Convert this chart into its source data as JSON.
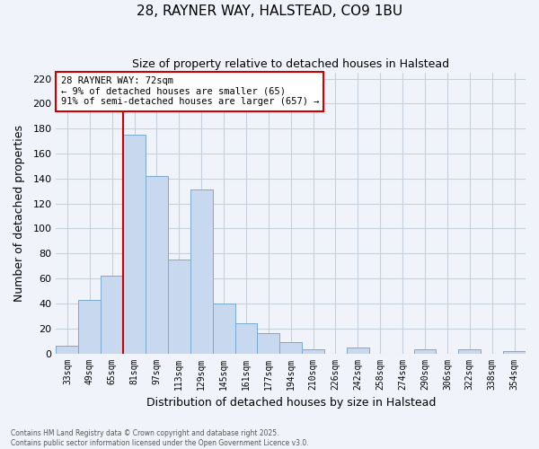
{
  "title": "28, RAYNER WAY, HALSTEAD, CO9 1BU",
  "subtitle": "Size of property relative to detached houses in Halstead",
  "xlabel": "Distribution of detached houses by size in Halstead",
  "ylabel": "Number of detached properties",
  "bar_labels": [
    "33sqm",
    "49sqm",
    "65sqm",
    "81sqm",
    "97sqm",
    "113sqm",
    "129sqm",
    "145sqm",
    "161sqm",
    "177sqm",
    "194sqm",
    "210sqm",
    "226sqm",
    "242sqm",
    "258sqm",
    "274sqm",
    "290sqm",
    "306sqm",
    "322sqm",
    "338sqm",
    "354sqm"
  ],
  "bar_values": [
    6,
    43,
    62,
    175,
    142,
    75,
    131,
    40,
    24,
    16,
    9,
    3,
    0,
    5,
    0,
    0,
    3,
    0,
    3,
    0,
    2
  ],
  "bar_color": "#c8d8ee",
  "bar_edge_color": "#7aaacf",
  "vline_x_idx": 3,
  "vline_color": "#cc0000",
  "annotation_title": "28 RAYNER WAY: 72sqm",
  "annotation_line1": "← 9% of detached houses are smaller (65)",
  "annotation_line2": "91% of semi-detached houses are larger (657) →",
  "annotation_box_color": "#ffffff",
  "annotation_box_edge": "#cc0000",
  "ylim": [
    0,
    225
  ],
  "yticks": [
    0,
    20,
    40,
    60,
    80,
    100,
    120,
    140,
    160,
    180,
    200,
    220
  ],
  "footer_line1": "Contains HM Land Registry data © Crown copyright and database right 2025.",
  "footer_line2": "Contains public sector information licensed under the Open Government Licence v3.0.",
  "bg_color": "#f0f4fa",
  "plot_bg_color": "#f0f4fa",
  "grid_color": "#c8d0dc"
}
